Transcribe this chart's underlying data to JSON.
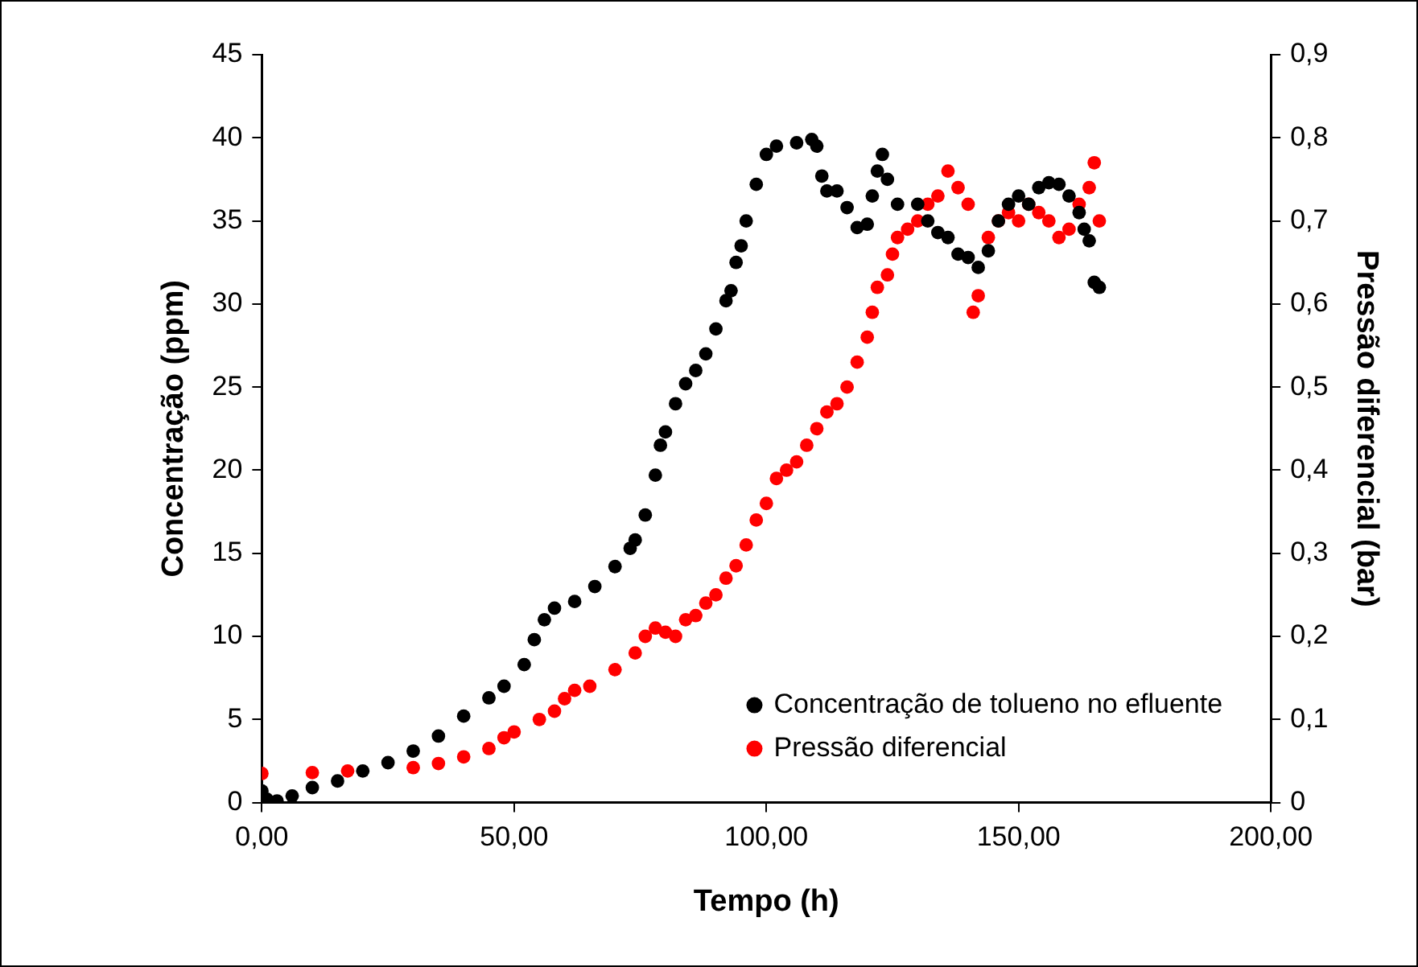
{
  "chart_data": {
    "type": "scatter",
    "xlabel": "Tempo (h)",
    "ylabel": "Concentração (ppm)",
    "y2label": "Pressão diferencial (bar)",
    "xlim": [
      0,
      200
    ],
    "xticks": [
      {
        "value": 0,
        "label": "0,00"
      },
      {
        "value": 50,
        "label": "50,00"
      },
      {
        "value": 100,
        "label": "100,00"
      },
      {
        "value": 150,
        "label": "150,00"
      },
      {
        "value": 200,
        "label": "200,00"
      }
    ],
    "ylim": [
      0,
      45
    ],
    "yticks": [
      0,
      5,
      10,
      15,
      20,
      25,
      30,
      35,
      40,
      45
    ],
    "y2lim": [
      0,
      0.9
    ],
    "y2ticks": [
      0,
      {
        "value": 0.1,
        "label": "0,1"
      },
      {
        "value": 0.2,
        "label": "0,2"
      },
      {
        "value": 0.3,
        "label": "0,3"
      },
      {
        "value": 0.4,
        "label": "0,4"
      },
      {
        "value": 0.5,
        "label": "0,5"
      },
      {
        "value": 0.6,
        "label": "0,6"
      },
      {
        "value": 0.7,
        "label": "0,7"
      },
      {
        "value": 0.8,
        "label": "0,8"
      },
      {
        "value": 0.9,
        "label": "0,9"
      }
    ],
    "grid": false,
    "legend": "bottom right",
    "marker": "circle",
    "series": [
      {
        "name": "Concentração de tolueno no efluente",
        "color": "#000000",
        "x": [
          0,
          1,
          3,
          6,
          10,
          15,
          20,
          25,
          30,
          35,
          40,
          45,
          48,
          52,
          54,
          56,
          58,
          62,
          66,
          70,
          73,
          74,
          76,
          78,
          79,
          80,
          82,
          84,
          86,
          88,
          90,
          92,
          93,
          94,
          95,
          96,
          98,
          100,
          102,
          106,
          109,
          110,
          111,
          112,
          114,
          116,
          118,
          120,
          121,
          122,
          123,
          124,
          126,
          130,
          132,
          134,
          136,
          138,
          140,
          142,
          144,
          146,
          148,
          150,
          152,
          154,
          156,
          158,
          160,
          162,
          163,
          164,
          165,
          166
        ],
        "values": [
          0.7,
          0.2,
          0.1,
          0.4,
          0.9,
          1.3,
          1.9,
          2.4,
          3.1,
          4.0,
          5.2,
          6.3,
          7.0,
          8.3,
          9.8,
          11.0,
          11.7,
          12.1,
          13.0,
          14.2,
          15.3,
          15.8,
          17.3,
          19.7,
          21.5,
          22.3,
          24.0,
          25.2,
          26.0,
          27.0,
          28.5,
          30.2,
          30.8,
          32.5,
          33.5,
          35.0,
          37.2,
          39.0,
          39.5,
          39.7,
          39.9,
          39.5,
          37.7,
          36.8,
          36.8,
          35.8,
          34.6,
          34.8,
          36.5,
          38.0,
          39.0,
          37.5,
          36.0,
          36.0,
          35.0,
          34.3,
          34.0,
          33.0,
          32.8,
          32.2,
          33.2,
          35.0,
          36.0,
          36.5,
          36.0,
          37.0,
          37.3,
          37.2,
          36.5,
          35.5,
          34.5,
          33.8,
          31.3,
          31.0
        ]
      },
      {
        "name": "Pressão diferencial",
        "color": "#ff0000",
        "axis": "y2",
        "x": [
          0,
          10,
          17,
          30,
          35,
          40,
          45,
          48,
          50,
          55,
          58,
          60,
          62,
          65,
          70,
          74,
          76,
          78,
          80,
          82,
          84,
          86,
          88,
          90,
          92,
          94,
          96,
          98,
          100,
          102,
          104,
          106,
          108,
          110,
          112,
          114,
          116,
          118,
          120,
          121,
          122,
          124,
          125,
          126,
          128,
          130,
          132,
          134,
          136,
          138,
          140,
          141,
          142,
          144,
          146,
          148,
          150,
          152,
          154,
          156,
          158,
          160,
          162,
          164,
          165,
          166
        ],
        "values": [
          0.035,
          0.036,
          0.038,
          0.042,
          0.047,
          0.055,
          0.065,
          0.078,
          0.085,
          0.1,
          0.11,
          0.125,
          0.135,
          0.14,
          0.16,
          0.18,
          0.2,
          0.21,
          0.205,
          0.2,
          0.22,
          0.225,
          0.24,
          0.25,
          0.27,
          0.285,
          0.31,
          0.34,
          0.36,
          0.39,
          0.4,
          0.41,
          0.43,
          0.45,
          0.47,
          0.48,
          0.5,
          0.53,
          0.56,
          0.59,
          0.62,
          0.635,
          0.66,
          0.68,
          0.69,
          0.7,
          0.72,
          0.73,
          0.76,
          0.74,
          0.72,
          0.59,
          0.61,
          0.68,
          0.7,
          0.71,
          0.7,
          0.72,
          0.71,
          0.7,
          0.68,
          0.69,
          0.72,
          0.74,
          0.77,
          0.7
        ]
      }
    ]
  }
}
